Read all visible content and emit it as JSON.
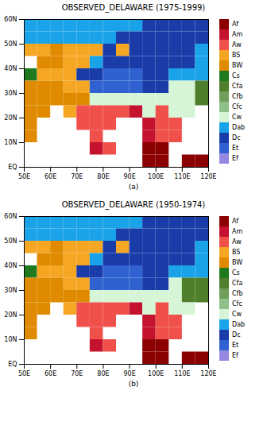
{
  "chart_data": [
    {
      "type": "heatmap",
      "title": "OBSERVED_DELAWARE (1975-1999)",
      "caption": "(a)",
      "categories": [
        "Af",
        "Am",
        "Aw",
        "BS",
        "BW",
        "Cs",
        "Cfa",
        "Cfb",
        "Cfc",
        "Cw",
        "Dab",
        "Dc",
        "Et",
        "Ef"
      ],
      "colors": [
        "#8b0000",
        "#c4122f",
        "#f0504a",
        "#f5a623",
        "#e08a00",
        "#1f7a1f",
        "#4f7f2a",
        "#6f9f5a",
        "#8fc08a",
        "#d6f5d6",
        "#1aa3e8",
        "#1a3ca8",
        "#2f62d0",
        "#9488e0"
      ],
      "xlim": [
        50,
        120
      ],
      "ylim": [
        0,
        60
      ],
      "xticks": [
        {
          "value": 50,
          "label": "50E"
        },
        {
          "value": 60,
          "label": "60E"
        },
        {
          "value": 70,
          "label": "70E"
        },
        {
          "value": 80,
          "label": "80E"
        },
        {
          "value": 90,
          "label": "90E"
        },
        {
          "value": 100,
          "label": "100E"
        },
        {
          "value": 110,
          "label": "110E"
        },
        {
          "value": 120,
          "label": "120E"
        }
      ],
      "yticks": [
        {
          "value": 0,
          "label": "EQ"
        },
        {
          "value": 10,
          "label": "10N"
        },
        {
          "value": 20,
          "label": "20N"
        },
        {
          "value": 30,
          "label": "30N"
        },
        {
          "value": 40,
          "label": "40N"
        },
        {
          "value": 50,
          "label": "50N"
        },
        {
          "value": 60,
          "label": "60N"
        }
      ],
      "x_bins": [
        50,
        55,
        60,
        65,
        70,
        75,
        80,
        85,
        90,
        95,
        100,
        105,
        110,
        115,
        120
      ],
      "y_bins": [
        60,
        55,
        50,
        45,
        40,
        35,
        30,
        25,
        20,
        15,
        10,
        5,
        0
      ],
      "cells": [
        [
          10,
          10,
          10,
          10,
          10,
          10,
          10,
          10,
          10,
          11,
          11,
          11,
          11,
          11
        ],
        [
          10,
          10,
          10,
          10,
          10,
          10,
          10,
          11,
          11,
          11,
          11,
          11,
          11,
          11
        ],
        [
          3,
          3,
          4,
          3,
          3,
          3,
          11,
          3,
          11,
          11,
          11,
          11,
          11,
          10
        ],
        [
          null,
          4,
          4,
          3,
          3,
          10,
          11,
          11,
          11,
          11,
          11,
          11,
          11,
          10
        ],
        [
          5,
          3,
          3,
          3,
          11,
          11,
          12,
          12,
          12,
          11,
          11,
          10,
          10,
          10
        ],
        [
          4,
          4,
          4,
          3,
          3,
          12,
          12,
          12,
          12,
          11,
          11,
          9,
          9,
          6
        ],
        [
          4,
          4,
          4,
          4,
          4,
          9,
          9,
          9,
          9,
          9,
          9,
          9,
          9,
          6
        ],
        [
          4,
          4,
          null,
          3,
          2,
          2,
          2,
          2,
          1,
          9,
          2,
          9,
          9,
          null
        ],
        [
          4,
          null,
          null,
          null,
          2,
          2,
          2,
          null,
          null,
          1,
          2,
          2,
          null,
          null
        ],
        [
          4,
          null,
          null,
          null,
          null,
          2,
          null,
          null,
          null,
          1,
          2,
          2,
          null,
          null
        ],
        [
          null,
          null,
          null,
          null,
          null,
          1,
          2,
          null,
          null,
          0,
          0,
          null,
          null,
          null
        ],
        [
          null,
          null,
          null,
          null,
          null,
          null,
          null,
          null,
          null,
          0,
          0,
          null,
          0,
          0
        ]
      ]
    },
    {
      "type": "heatmap",
      "title": "OBSERVED_DELAWARE (1950-1974)",
      "caption": "(b)",
      "categories": [
        "Af",
        "Am",
        "Aw",
        "BS",
        "BW",
        "Cs",
        "Cfa",
        "Cfb",
        "Cfc",
        "Cw",
        "Dab",
        "Dc",
        "Et",
        "Ef"
      ],
      "colors": [
        "#8b0000",
        "#c4122f",
        "#f0504a",
        "#f5a623",
        "#e08a00",
        "#1f7a1f",
        "#4f7f2a",
        "#6f9f5a",
        "#8fc08a",
        "#d6f5d6",
        "#1aa3e8",
        "#1a3ca8",
        "#2f62d0",
        "#9488e0"
      ],
      "xlim": [
        50,
        120
      ],
      "ylim": [
        0,
        60
      ],
      "xticks": [
        {
          "value": 50,
          "label": "50E"
        },
        {
          "value": 60,
          "label": "60E"
        },
        {
          "value": 70,
          "label": "70E"
        },
        {
          "value": 80,
          "label": "80E"
        },
        {
          "value": 90,
          "label": "90E"
        },
        {
          "value": 100,
          "label": "100E"
        },
        {
          "value": 110,
          "label": "110E"
        },
        {
          "value": 120,
          "label": "120E"
        }
      ],
      "yticks": [
        {
          "value": 0,
          "label": "EQ"
        },
        {
          "value": 10,
          "label": "10N"
        },
        {
          "value": 20,
          "label": "20N"
        },
        {
          "value": 30,
          "label": "30N"
        },
        {
          "value": 40,
          "label": "40N"
        },
        {
          "value": 50,
          "label": "50N"
        },
        {
          "value": 60,
          "label": "60N"
        }
      ],
      "x_bins": [
        50,
        55,
        60,
        65,
        70,
        75,
        80,
        85,
        90,
        95,
        100,
        105,
        110,
        115,
        120
      ],
      "y_bins": [
        60,
        55,
        50,
        45,
        40,
        35,
        30,
        25,
        20,
        15,
        10,
        5,
        0
      ],
      "cells": [
        [
          10,
          10,
          10,
          10,
          10,
          10,
          10,
          10,
          10,
          11,
          11,
          11,
          11,
          11
        ],
        [
          10,
          10,
          10,
          10,
          10,
          10,
          10,
          11,
          11,
          11,
          11,
          11,
          11,
          11
        ],
        [
          3,
          3,
          4,
          3,
          3,
          3,
          11,
          3,
          11,
          11,
          11,
          11,
          11,
          10
        ],
        [
          null,
          4,
          4,
          3,
          3,
          10,
          11,
          11,
          11,
          11,
          11,
          11,
          11,
          10
        ],
        [
          5,
          3,
          3,
          3,
          11,
          11,
          12,
          12,
          12,
          11,
          11,
          10,
          10,
          10
        ],
        [
          4,
          4,
          4,
          3,
          3,
          12,
          12,
          12,
          12,
          11,
          11,
          9,
          6,
          6
        ],
        [
          4,
          4,
          4,
          4,
          4,
          9,
          9,
          9,
          9,
          9,
          9,
          9,
          6,
          6
        ],
        [
          4,
          4,
          null,
          3,
          2,
          2,
          2,
          2,
          1,
          9,
          2,
          9,
          9,
          null
        ],
        [
          4,
          null,
          null,
          null,
          2,
          2,
          2,
          null,
          null,
          1,
          2,
          2,
          null,
          null
        ],
        [
          4,
          null,
          null,
          null,
          null,
          2,
          null,
          null,
          null,
          1,
          2,
          2,
          null,
          null
        ],
        [
          null,
          null,
          null,
          null,
          null,
          1,
          2,
          null,
          null,
          0,
          0,
          null,
          null,
          null
        ],
        [
          null,
          null,
          null,
          null,
          null,
          null,
          null,
          null,
          null,
          0,
          0,
          null,
          0,
          0
        ]
      ]
    }
  ]
}
